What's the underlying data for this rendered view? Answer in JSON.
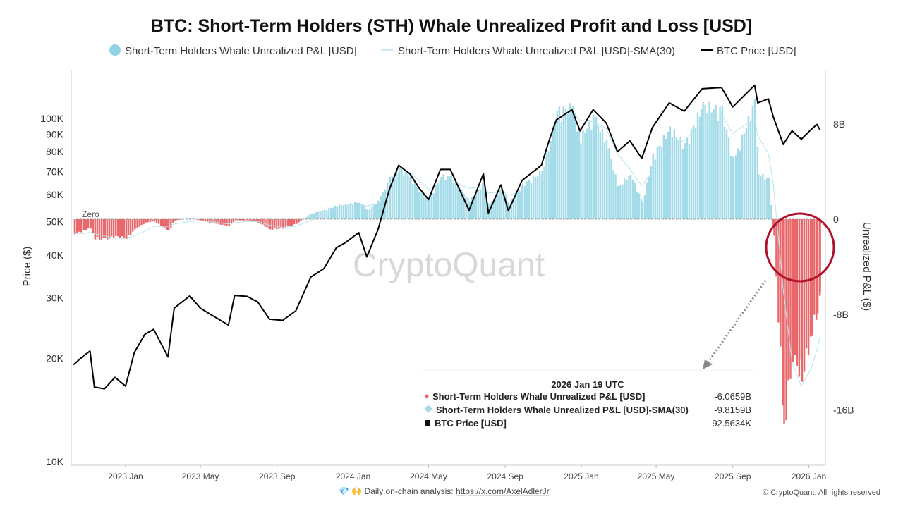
{
  "chart_data": {
    "type": "bar+line",
    "title": "BTC: Short-Term Holders (STH) Whale Unrealized Profit and Loss [USD]",
    "legend": [
      {
        "label": "Short-Term Holders Whale Unrealized P&L [USD]",
        "color": "#8fd3e5",
        "marker": "circle"
      },
      {
        "label": "Short-Term Holders Whale Unrealized P&L [USD]-SMA(30)",
        "color": "#b9e4ef",
        "marker": "line"
      },
      {
        "label": "BTC Price [USD]",
        "color": "#000000",
        "marker": "line"
      }
    ],
    "legend_position": "top",
    "y_left": {
      "label": "Price ($)",
      "scale": "log",
      "range": [
        10000,
        150000
      ],
      "ticks": [
        {
          "v": 10000,
          "t": "10K"
        },
        {
          "v": 20000,
          "t": "20K"
        },
        {
          "v": 30000,
          "t": "30K"
        },
        {
          "v": 40000,
          "t": "40K"
        },
        {
          "v": 50000,
          "t": "50K"
        },
        {
          "v": 60000,
          "t": "60K"
        },
        {
          "v": 70000,
          "t": "70K"
        },
        {
          "v": 80000,
          "t": "80K"
        },
        {
          "v": 90000,
          "t": "90K"
        },
        {
          "v": 100000,
          "t": "100K"
        }
      ]
    },
    "y_right": {
      "label": "Unrealized P&L ($)",
      "scale": "linear",
      "unit": "B USD",
      "ticks": [
        {
          "v": 8,
          "t": "8B"
        },
        {
          "v": 0,
          "t": "0"
        },
        {
          "v": -8,
          "t": "-8B"
        },
        {
          "v": -16,
          "t": "-16B"
        }
      ]
    },
    "x_ticks": [
      {
        "d": "2023-01-01",
        "t": "2023 Jan"
      },
      {
        "d": "2023-05-01",
        "t": "2023 May"
      },
      {
        "d": "2023-09-01",
        "t": "2023 Sep"
      },
      {
        "d": "2024-01-01",
        "t": "2024 Jan"
      },
      {
        "d": "2024-05-01",
        "t": "2024 May"
      },
      {
        "d": "2024-09-01",
        "t": "2024 Sep"
      },
      {
        "d": "2025-01-01",
        "t": "2025 Jan"
      },
      {
        "d": "2025-05-01",
        "t": "2025 May"
      },
      {
        "d": "2025-09-01",
        "t": "2025 Sep"
      },
      {
        "d": "2026-01-01",
        "t": "2026 Jan"
      }
    ],
    "zero_label": "Zero",
    "colors": {
      "positive": "#a3dbe8",
      "negative": "#e8686c",
      "price": "#000000",
      "sma": "#b9e4ef",
      "annotation": "#b0122a"
    },
    "columns": [
      "date",
      "btc_price_k",
      "sth_whale_pnl_b",
      "sma30_b"
    ],
    "rows": [
      [
        "2022-10-10",
        19.2,
        -1.3,
        -1.2
      ],
      [
        "2022-10-25",
        20.3,
        -1.0,
        -1.2
      ],
      [
        "2022-11-05",
        21.0,
        -0.8,
        -1.1
      ],
      [
        "2022-11-12",
        16.5,
        -1.7,
        -1.2
      ],
      [
        "2022-11-28",
        16.3,
        -1.8,
        -1.4
      ],
      [
        "2022-12-15",
        17.6,
        -1.5,
        -1.6
      ],
      [
        "2023-01-01",
        16.6,
        -1.7,
        -1.6
      ],
      [
        "2023-01-15",
        20.8,
        -0.9,
        -1.4
      ],
      [
        "2023-02-01",
        23.5,
        -0.3,
        -1.0
      ],
      [
        "2023-02-15",
        24.3,
        -0.2,
        -0.6
      ],
      [
        "2023-03-10",
        20.2,
        -1.0,
        -0.6
      ],
      [
        "2023-03-20",
        28.0,
        -0.1,
        -0.4
      ],
      [
        "2023-04-14",
        30.4,
        0.1,
        -0.2
      ],
      [
        "2023-05-01",
        28.0,
        -0.1,
        -0.1
      ],
      [
        "2023-05-15",
        27.0,
        -0.3,
        -0.2
      ],
      [
        "2023-06-15",
        25.0,
        -0.6,
        -0.4
      ],
      [
        "2023-06-25",
        30.5,
        -0.1,
        -0.3
      ],
      [
        "2023-07-15",
        30.3,
        -0.1,
        -0.2
      ],
      [
        "2023-08-01",
        29.2,
        -0.3,
        -0.2
      ],
      [
        "2023-08-20",
        26.0,
        -0.9,
        -0.5
      ],
      [
        "2023-09-10",
        25.8,
        -0.8,
        -0.7
      ],
      [
        "2023-10-01",
        27.5,
        -0.4,
        -0.6
      ],
      [
        "2023-10-25",
        34.5,
        0.5,
        -0.1
      ],
      [
        "2023-11-15",
        36.5,
        0.8,
        0.5
      ],
      [
        "2023-12-05",
        42.0,
        1.2,
        0.9
      ],
      [
        "2023-12-20",
        43.5,
        1.3,
        1.1
      ],
      [
        "2024-01-10",
        46.5,
        1.5,
        1.3
      ],
      [
        "2024-01-23",
        39.5,
        0.8,
        1.1
      ],
      [
        "2024-02-10",
        47.5,
        1.6,
        1.3
      ],
      [
        "2024-02-28",
        62.0,
        3.6,
        2.4
      ],
      [
        "2024-03-14",
        73.0,
        4.5,
        3.6
      ],
      [
        "2024-04-01",
        69.0,
        3.8,
        3.9
      ],
      [
        "2024-04-15",
        63.0,
        2.5,
        3.3
      ],
      [
        "2024-05-01",
        58.0,
        1.8,
        2.5
      ],
      [
        "2024-05-20",
        71.0,
        3.8,
        2.8
      ],
      [
        "2024-06-05",
        71.0,
        3.7,
        3.3
      ],
      [
        "2024-07-05",
        54.0,
        1.6,
        2.6
      ],
      [
        "2024-07-28",
        69.0,
        3.3,
        2.7
      ],
      [
        "2024-08-05",
        53.0,
        1.2,
        2.2
      ],
      [
        "2024-08-25",
        64.0,
        2.8,
        2.3
      ],
      [
        "2024-09-06",
        53.8,
        1.4,
        2.0
      ],
      [
        "2024-09-28",
        66.0,
        3.0,
        2.4
      ],
      [
        "2024-10-29",
        73.0,
        4.2,
        3.3
      ],
      [
        "2024-11-12",
        88.0,
        7.0,
        5.0
      ],
      [
        "2024-11-22",
        99.0,
        9.5,
        7.3
      ],
      [
        "2024-12-17",
        106.0,
        9.8,
        9.0
      ],
      [
        "2024-12-30",
        92.0,
        7.2,
        8.3
      ],
      [
        "2025-01-20",
        106.0,
        9.0,
        8.2
      ],
      [
        "2025-02-10",
        97.0,
        6.8,
        7.6
      ],
      [
        "2025-02-28",
        80.0,
        2.8,
        5.5
      ],
      [
        "2025-03-20",
        86.0,
        4.0,
        4.2
      ],
      [
        "2025-04-08",
        76.5,
        1.5,
        2.8
      ],
      [
        "2025-04-25",
        94.0,
        5.5,
        4.0
      ],
      [
        "2025-05-22",
        111.0,
        8.0,
        6.0
      ],
      [
        "2025-06-15",
        105.0,
        6.5,
        6.6
      ],
      [
        "2025-07-14",
        122.0,
        10.0,
        8.0
      ],
      [
        "2025-08-14",
        123.0,
        9.5,
        8.8
      ],
      [
        "2025-09-01",
        108.0,
        5.0,
        7.2
      ],
      [
        "2025-10-06",
        125.0,
        10.5,
        8.5
      ],
      [
        "2025-10-11",
        111.0,
        4.0,
        7.0
      ],
      [
        "2025-10-28",
        114.0,
        3.5,
        5.5
      ],
      [
        "2025-11-05",
        101.0,
        -1.5,
        3.0
      ],
      [
        "2025-11-21",
        84.0,
        -18.5,
        -6.0
      ],
      [
        "2025-12-05",
        92.0,
        -12.0,
        -12.0
      ],
      [
        "2025-12-20",
        87.0,
        -14.0,
        -14.0
      ],
      [
        "2026-01-05",
        93.0,
        -10.0,
        -12.5
      ],
      [
        "2026-01-14",
        96.0,
        -8.0,
        -11.0
      ],
      [
        "2026-01-19",
        92.56,
        -6.07,
        -9.82
      ]
    ]
  },
  "tooltip": {
    "date": "2026 Jan 19 UTC",
    "rows": [
      {
        "label": "Short-Term Holders Whale Unrealized P&L [USD]",
        "value": "-6.0659B",
        "color": "#e8686c"
      },
      {
        "label": "Short-Term Holders Whale Unrealized P&L [USD]-SMA(30)",
        "value": "-9.8159B",
        "color": "#a3dbe8"
      },
      {
        "label": "BTC Price [USD]",
        "value": "92.5634K",
        "color": "#111111"
      }
    ]
  },
  "watermark": "CryptoQuant",
  "footer": {
    "prefix": "💎 🙌 Daily on-chain analysis: ",
    "link": "https://x.com/AxelAdlerJr",
    "copyright": "© CryptoQuant. All rights reserved"
  }
}
